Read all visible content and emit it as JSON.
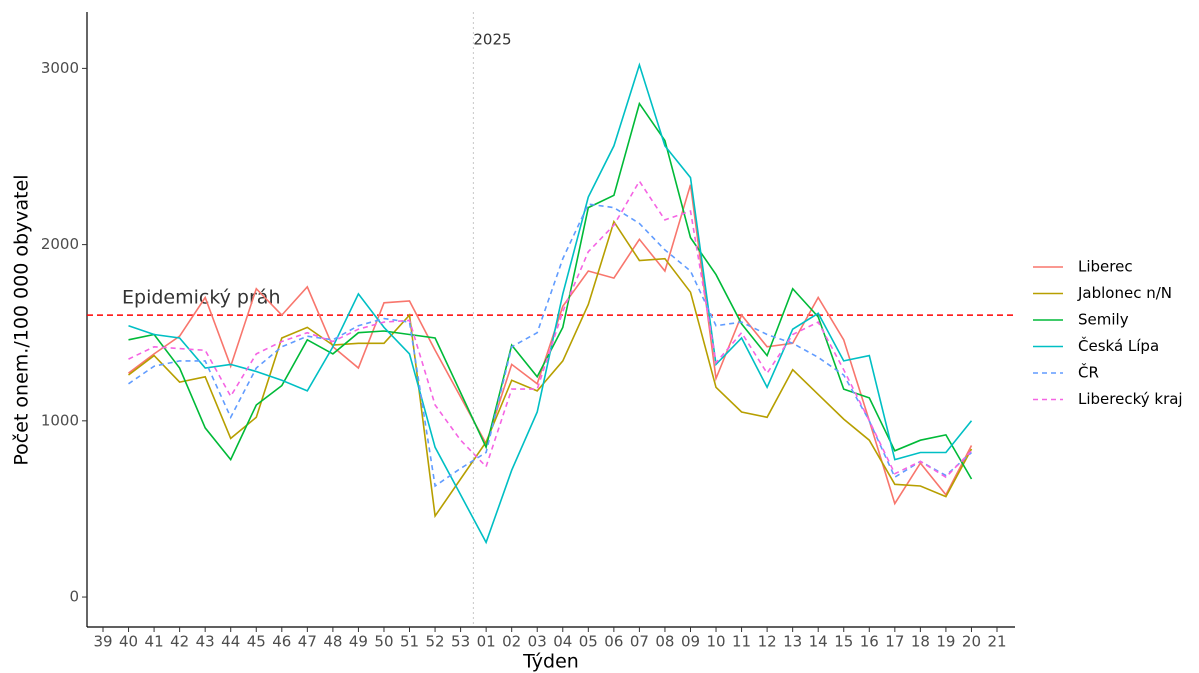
{
  "chart_data": {
    "type": "line",
    "x_label": "Týden",
    "y_label": "Počet onem./100 000 obyvatel",
    "categories": [
      "39",
      "40",
      "41",
      "42",
      "43",
      "44",
      "45",
      "46",
      "47",
      "48",
      "49",
      "50",
      "51",
      "52",
      "53",
      "01",
      "02",
      "03",
      "04",
      "05",
      "06",
      "07",
      "08",
      "09",
      "10",
      "11",
      "12",
      "13",
      "14",
      "15",
      "16",
      "17",
      "18",
      "19",
      "20",
      "21"
    ],
    "ylim": [
      -170,
      3320
    ],
    "yticks": [
      0,
      1000,
      2000,
      3000
    ],
    "threshold": {
      "value": 1600,
      "label": "Epidemický práh",
      "color": "#ff0000"
    },
    "year_marker": "2025",
    "series": [
      {
        "name": "Liberec",
        "color": "#F8766D",
        "dash": false,
        "values": [
          null,
          1270,
          1380,
          1480,
          1700,
          1310,
          1750,
          1600,
          1760,
          1420,
          1300,
          1670,
          1680,
          1400,
          1135,
          870,
          1320,
          1210,
          1650,
          1850,
          1810,
          2030,
          1850,
          2340,
          1240,
          1600,
          1420,
          1440,
          1700,
          1460,
          1000,
          530,
          760,
          580,
          860,
          null
        ]
      },
      {
        "name": "Jablonec n/N",
        "color": "#B79F00",
        "dash": false,
        "values": [
          null,
          1260,
          1370,
          1220,
          1250,
          900,
          1020,
          1470,
          1530,
          1430,
          1440,
          1440,
          1600,
          460,
          670,
          880,
          1230,
          1170,
          1340,
          1660,
          2130,
          1910,
          1920,
          1730,
          1190,
          1050,
          1020,
          1290,
          1150,
          1010,
          890,
          640,
          630,
          570,
          840,
          null
        ]
      },
      {
        "name": "Semily",
        "color": "#00BA38",
        "dash": false,
        "values": [
          null,
          1460,
          1490,
          1300,
          960,
          780,
          1090,
          1200,
          1460,
          1380,
          1500,
          1510,
          1490,
          1470,
          1160,
          850,
          1430,
          1250,
          1530,
          2210,
          2280,
          2800,
          2590,
          2040,
          1830,
          1550,
          1370,
          1750,
          1590,
          1180,
          1130,
          830,
          890,
          920,
          670,
          null
        ]
      },
      {
        "name": "Česká Lípa",
        "color": "#00BFC4",
        "dash": false,
        "values": [
          null,
          1540,
          1490,
          1470,
          1300,
          1320,
          1280,
          1230,
          1170,
          1420,
          1720,
          1530,
          1380,
          850,
          580,
          310,
          720,
          1050,
          1720,
          2270,
          2560,
          3020,
          2560,
          2380,
          1320,
          1470,
          1190,
          1520,
          1610,
          1340,
          1370,
          780,
          820,
          820,
          1000,
          null
        ]
      },
      {
        "name": "ČR",
        "color": "#619CFF",
        "dash": true,
        "values": [
          null,
          1210,
          1310,
          1340,
          1340,
          1020,
          1300,
          1420,
          1480,
          1460,
          1540,
          1580,
          1560,
          630,
          730,
          820,
          1420,
          1500,
          1920,
          2230,
          2210,
          2120,
          1970,
          1850,
          1540,
          1560,
          1490,
          1440,
          1360,
          1260,
          1000,
          680,
          770,
          690,
          820,
          null
        ]
      },
      {
        "name": "Liberecký kraj",
        "color": "#F564E3",
        "dash": true,
        "values": [
          null,
          1350,
          1420,
          1410,
          1400,
          1140,
          1380,
          1450,
          1500,
          1450,
          1520,
          1560,
          1570,
          1090,
          890,
          740,
          1180,
          1180,
          1620,
          1960,
          2110,
          2360,
          2140,
          2190,
          1330,
          1500,
          1270,
          1490,
          1560,
          1290,
          1000,
          700,
          770,
          680,
          830,
          null
        ]
      }
    ]
  }
}
